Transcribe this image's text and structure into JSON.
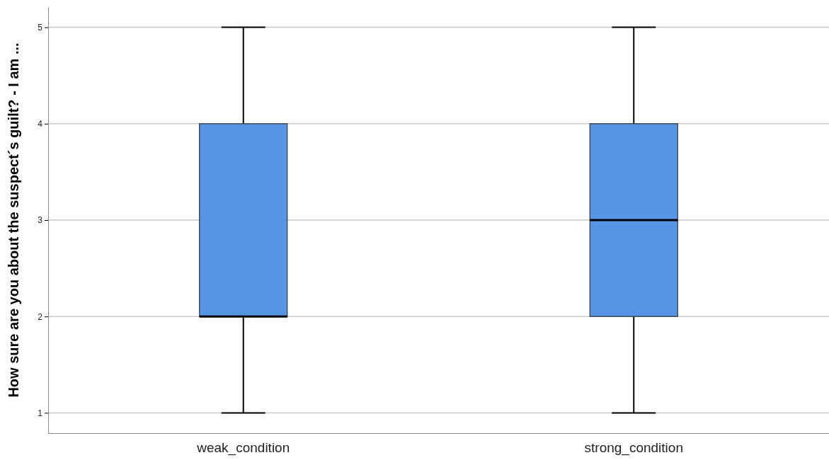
{
  "chart_data": {
    "type": "box",
    "ylabel": "How sure are you about the suspect´s guilt? - I am ...",
    "categories": [
      "weak_condition",
      "strong_condition"
    ],
    "color": "#5595e4",
    "boxes": [
      {
        "low": 1,
        "q1": 2,
        "median": 2,
        "q3": 4,
        "high": 5
      },
      {
        "low": 1,
        "q1": 2,
        "median": 3,
        "q3": 4,
        "high": 5
      }
    ],
    "ylim": [
      0.79,
      5.21
    ],
    "yticks": [
      1,
      2,
      3,
      4,
      5
    ],
    "grid": "y"
  }
}
